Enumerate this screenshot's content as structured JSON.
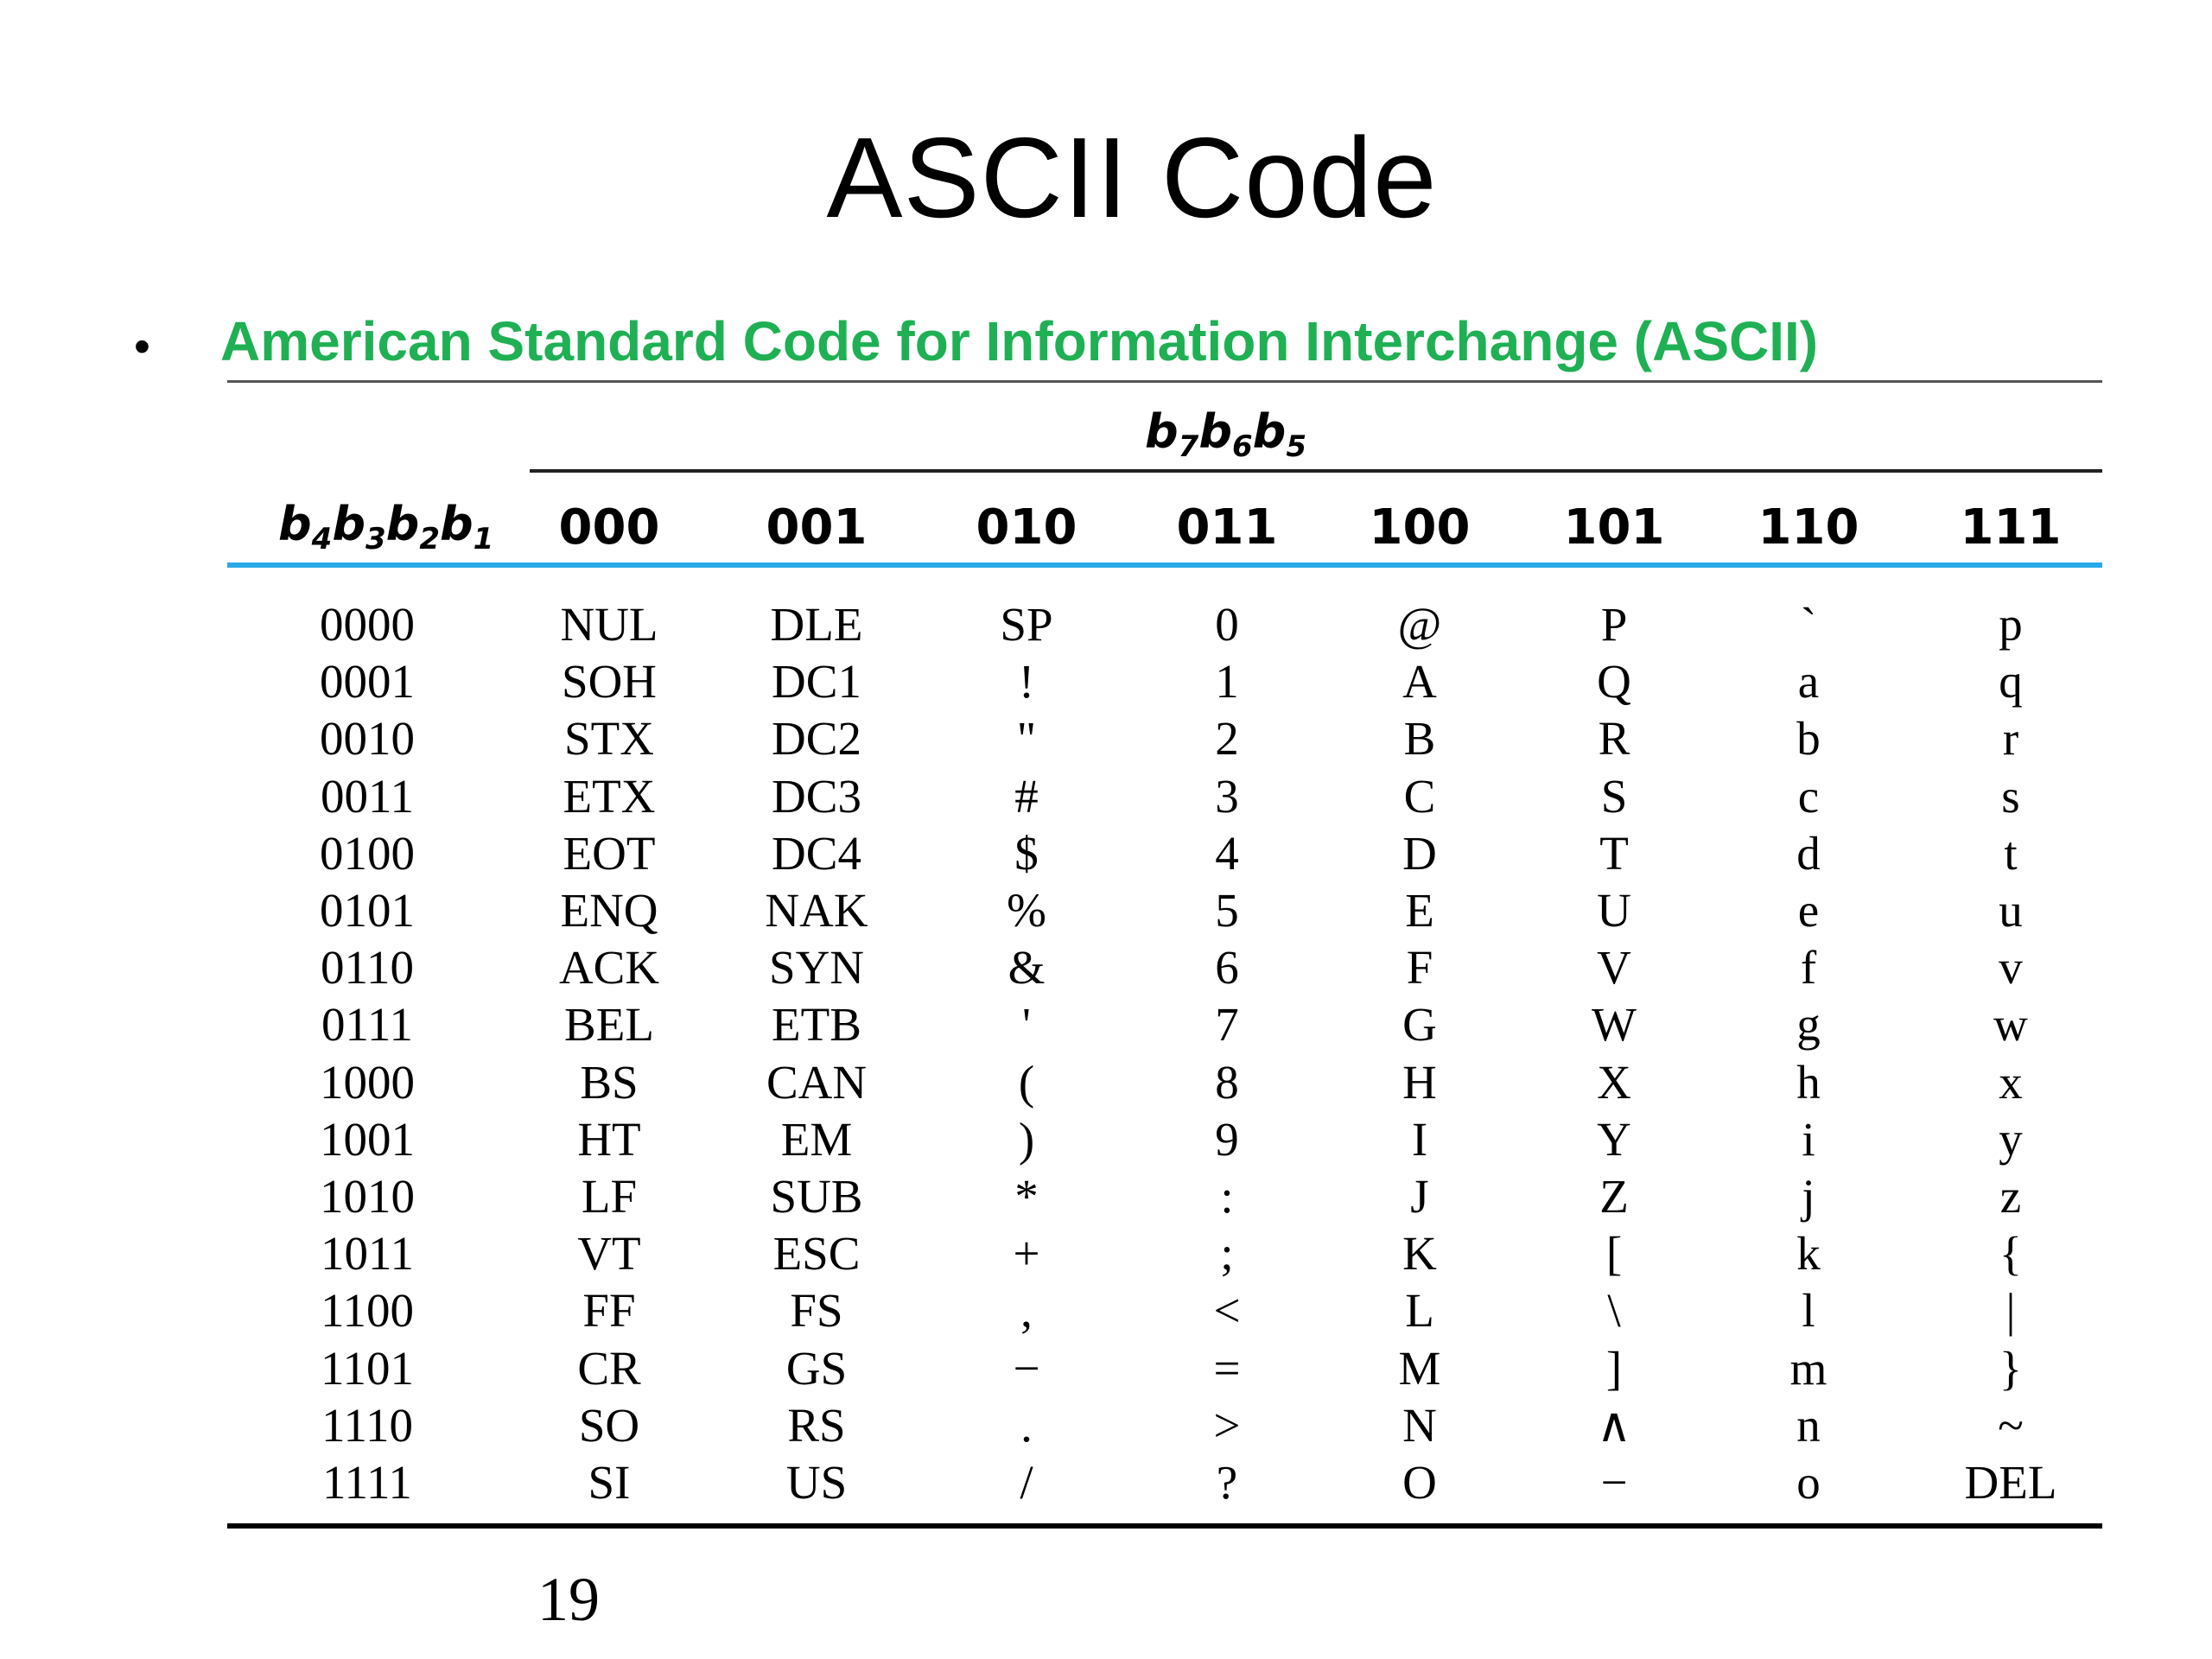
{
  "slide": {
    "title": "ASCII Code",
    "bullet": "American Standard Code for Information Interchange (ASCII)",
    "page_number": "19"
  },
  "table": {
    "column_group_header": {
      "b1": "b",
      "s1": "7",
      "b2": "b",
      "s2": "6",
      "b3": "b",
      "s3": "5"
    },
    "row_header": {
      "b1": "b",
      "s1": "4",
      "b2": "b",
      "s2": "3",
      "b3": "b",
      "s3": "2",
      "b4": "b",
      "s4": "1"
    },
    "columns": [
      "000",
      "001",
      "010",
      "011",
      "100",
      "101",
      "110",
      "111"
    ],
    "rows": [
      {
        "code": "0000",
        "cells": [
          "NUL",
          "DLE",
          "SP",
          "0",
          "@",
          "P",
          "`",
          "p"
        ]
      },
      {
        "code": "0001",
        "cells": [
          "SOH",
          "DC1",
          "!",
          "1",
          "A",
          "Q",
          "a",
          "q"
        ]
      },
      {
        "code": "0010",
        "cells": [
          "STX",
          "DC2",
          "\"",
          "2",
          "B",
          "R",
          "b",
          "r"
        ]
      },
      {
        "code": "0011",
        "cells": [
          "ETX",
          "DC3",
          "#",
          "3",
          "C",
          "S",
          "c",
          "s"
        ]
      },
      {
        "code": "0100",
        "cells": [
          "EOT",
          "DC4",
          "$",
          "4",
          "D",
          "T",
          "d",
          "t"
        ]
      },
      {
        "code": "0101",
        "cells": [
          "ENQ",
          "NAK",
          "%",
          "5",
          "E",
          "U",
          "e",
          "u"
        ]
      },
      {
        "code": "0110",
        "cells": [
          "ACK",
          "SYN",
          "&",
          "6",
          "F",
          "V",
          "f",
          "v"
        ]
      },
      {
        "code": "0111",
        "cells": [
          "BEL",
          "ETB",
          "'",
          "7",
          "G",
          "W",
          "g",
          "w"
        ]
      },
      {
        "code": "1000",
        "cells": [
          "BS",
          "CAN",
          "(",
          "8",
          "H",
          "X",
          "h",
          "x"
        ]
      },
      {
        "code": "1001",
        "cells": [
          "HT",
          "EM",
          ")",
          "9",
          "I",
          "Y",
          "i",
          "y"
        ]
      },
      {
        "code": "1010",
        "cells": [
          "LF",
          "SUB",
          "*",
          ":",
          "J",
          "Z",
          "j",
          "z"
        ]
      },
      {
        "code": "1011",
        "cells": [
          "VT",
          "ESC",
          "+",
          ";",
          "K",
          "[",
          "k",
          "{"
        ]
      },
      {
        "code": "1100",
        "cells": [
          "FF",
          "FS",
          ",",
          "<",
          "L",
          "\\",
          "l",
          "|"
        ]
      },
      {
        "code": "1101",
        "cells": [
          "CR",
          "GS",
          "−",
          "=",
          "M",
          "]",
          "m",
          "}"
        ]
      },
      {
        "code": "1110",
        "cells": [
          "SO",
          "RS",
          ".",
          ">",
          "N",
          "∧",
          "n",
          "~"
        ]
      },
      {
        "code": "1111",
        "cells": [
          "SI",
          "US",
          "/",
          "?",
          "O",
          "−",
          "o",
          "DEL"
        ]
      }
    ]
  },
  "colors": {
    "bullet_text": "#1fb054",
    "header_rule": "#2aa9e8",
    "text": "#000000"
  }
}
